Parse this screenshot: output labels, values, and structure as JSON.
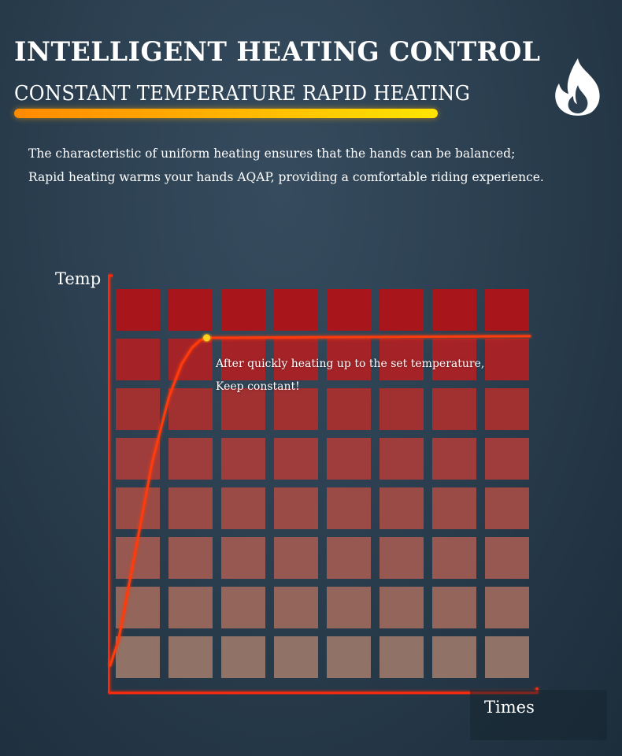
{
  "header": {
    "title": "INTELLIGENT HEATING CONTROL",
    "subtitle": "CONSTANT TEMPERATURE RAPID HEATING",
    "underline_gradient": [
      "#ff8a00",
      "#ffe600"
    ],
    "icon": "flame-icon"
  },
  "description": {
    "line1": "The characteristic of uniform heating ensures that the hands can be balanced;",
    "line2": "Rapid heating warms your hands AQAP, providing a comfortable riding experience."
  },
  "chart_data": {
    "type": "line",
    "title": "",
    "xlabel": "Times",
    "ylabel": "Temp",
    "xlim": [
      0,
      100
    ],
    "ylim": [
      0,
      100
    ],
    "grid": "8x8 colored tiles, red at top fading to beige at bottom",
    "legend": "none",
    "series": [
      {
        "color": "#ff3a10",
        "x": [
          0,
          2,
          6,
          10,
          14,
          17,
          19.5,
          21.5,
          23,
          100
        ],
        "y": [
          0,
          8,
          35,
          62,
          82,
          92,
          97,
          99.3,
          100,
          100.5
        ]
      }
    ],
    "highlight_point": {
      "x": 23,
      "y": 100,
      "color": "#ffd21a"
    },
    "annotation": {
      "line1": "After quickly heating up to the set temperature,",
      "line2": "Keep constant!"
    },
    "tile_colors": {
      "top": "#a8161c",
      "bottom": "#907266"
    },
    "axis_color": "#ff2a10"
  }
}
